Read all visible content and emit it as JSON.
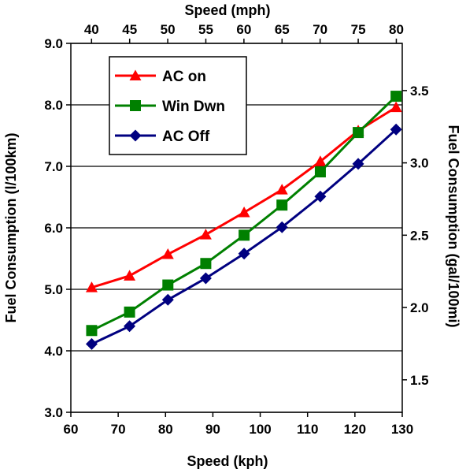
{
  "chart_data": {
    "type": "line",
    "x_axis_bottom": {
      "label": "Speed (kph)",
      "range": [
        60,
        130
      ],
      "ticks": [
        "60",
        "70",
        "80",
        "90",
        "100",
        "110",
        "120",
        "130"
      ]
    },
    "x_axis_top": {
      "label": "Speed (mph)",
      "ticks": [
        {
          "value": 40,
          "text": "40"
        },
        {
          "value": 45,
          "text": "45"
        },
        {
          "value": 50,
          "text": "50"
        },
        {
          "value": 55,
          "text": "55"
        },
        {
          "value": 60,
          "text": "60"
        },
        {
          "value": 65,
          "text": "65"
        },
        {
          "value": 70,
          "text": "70"
        },
        {
          "value": 75,
          "text": "75"
        },
        {
          "value": 80,
          "text": "80"
        }
      ]
    },
    "y_axis_left": {
      "label": "Fuel Consumption (l/100km)",
      "range": [
        3.0,
        9.0
      ],
      "ticks": [
        "3.0",
        "4.0",
        "5.0",
        "6.0",
        "7.0",
        "8.0",
        "9.0"
      ]
    },
    "y_axis_right": {
      "label": "Fuel Consumption (gal/100mi)",
      "ticks": [
        {
          "value": 1.5,
          "text": "1.5"
        },
        {
          "value": 2.0,
          "text": "2.0"
        },
        {
          "value": 2.5,
          "text": "2.5"
        },
        {
          "value": 3.0,
          "text": "3.0"
        },
        {
          "value": 3.5,
          "text": "3.5"
        }
      ]
    },
    "grid": "horizontal",
    "legend_position": "top-left",
    "x": [
      64.4,
      72.4,
      80.5,
      88.5,
      96.6,
      104.6,
      112.7,
      120.7,
      128.7
    ],
    "series": [
      {
        "name": "AC on",
        "color": "#ff0000",
        "marker": "triangle",
        "values": [
          5.03,
          5.22,
          5.57,
          5.89,
          6.25,
          6.62,
          7.08,
          7.58,
          7.96
        ]
      },
      {
        "name": "Win Dwn",
        "color": "#008000",
        "marker": "square",
        "values": [
          4.33,
          4.63,
          5.07,
          5.42,
          5.88,
          6.37,
          6.91,
          7.55,
          8.14
        ]
      },
      {
        "name": "AC Off",
        "color": "#000080",
        "marker": "diamond",
        "values": [
          4.11,
          4.4,
          4.83,
          5.18,
          5.58,
          6.01,
          6.51,
          7.04,
          7.6
        ]
      }
    ]
  }
}
